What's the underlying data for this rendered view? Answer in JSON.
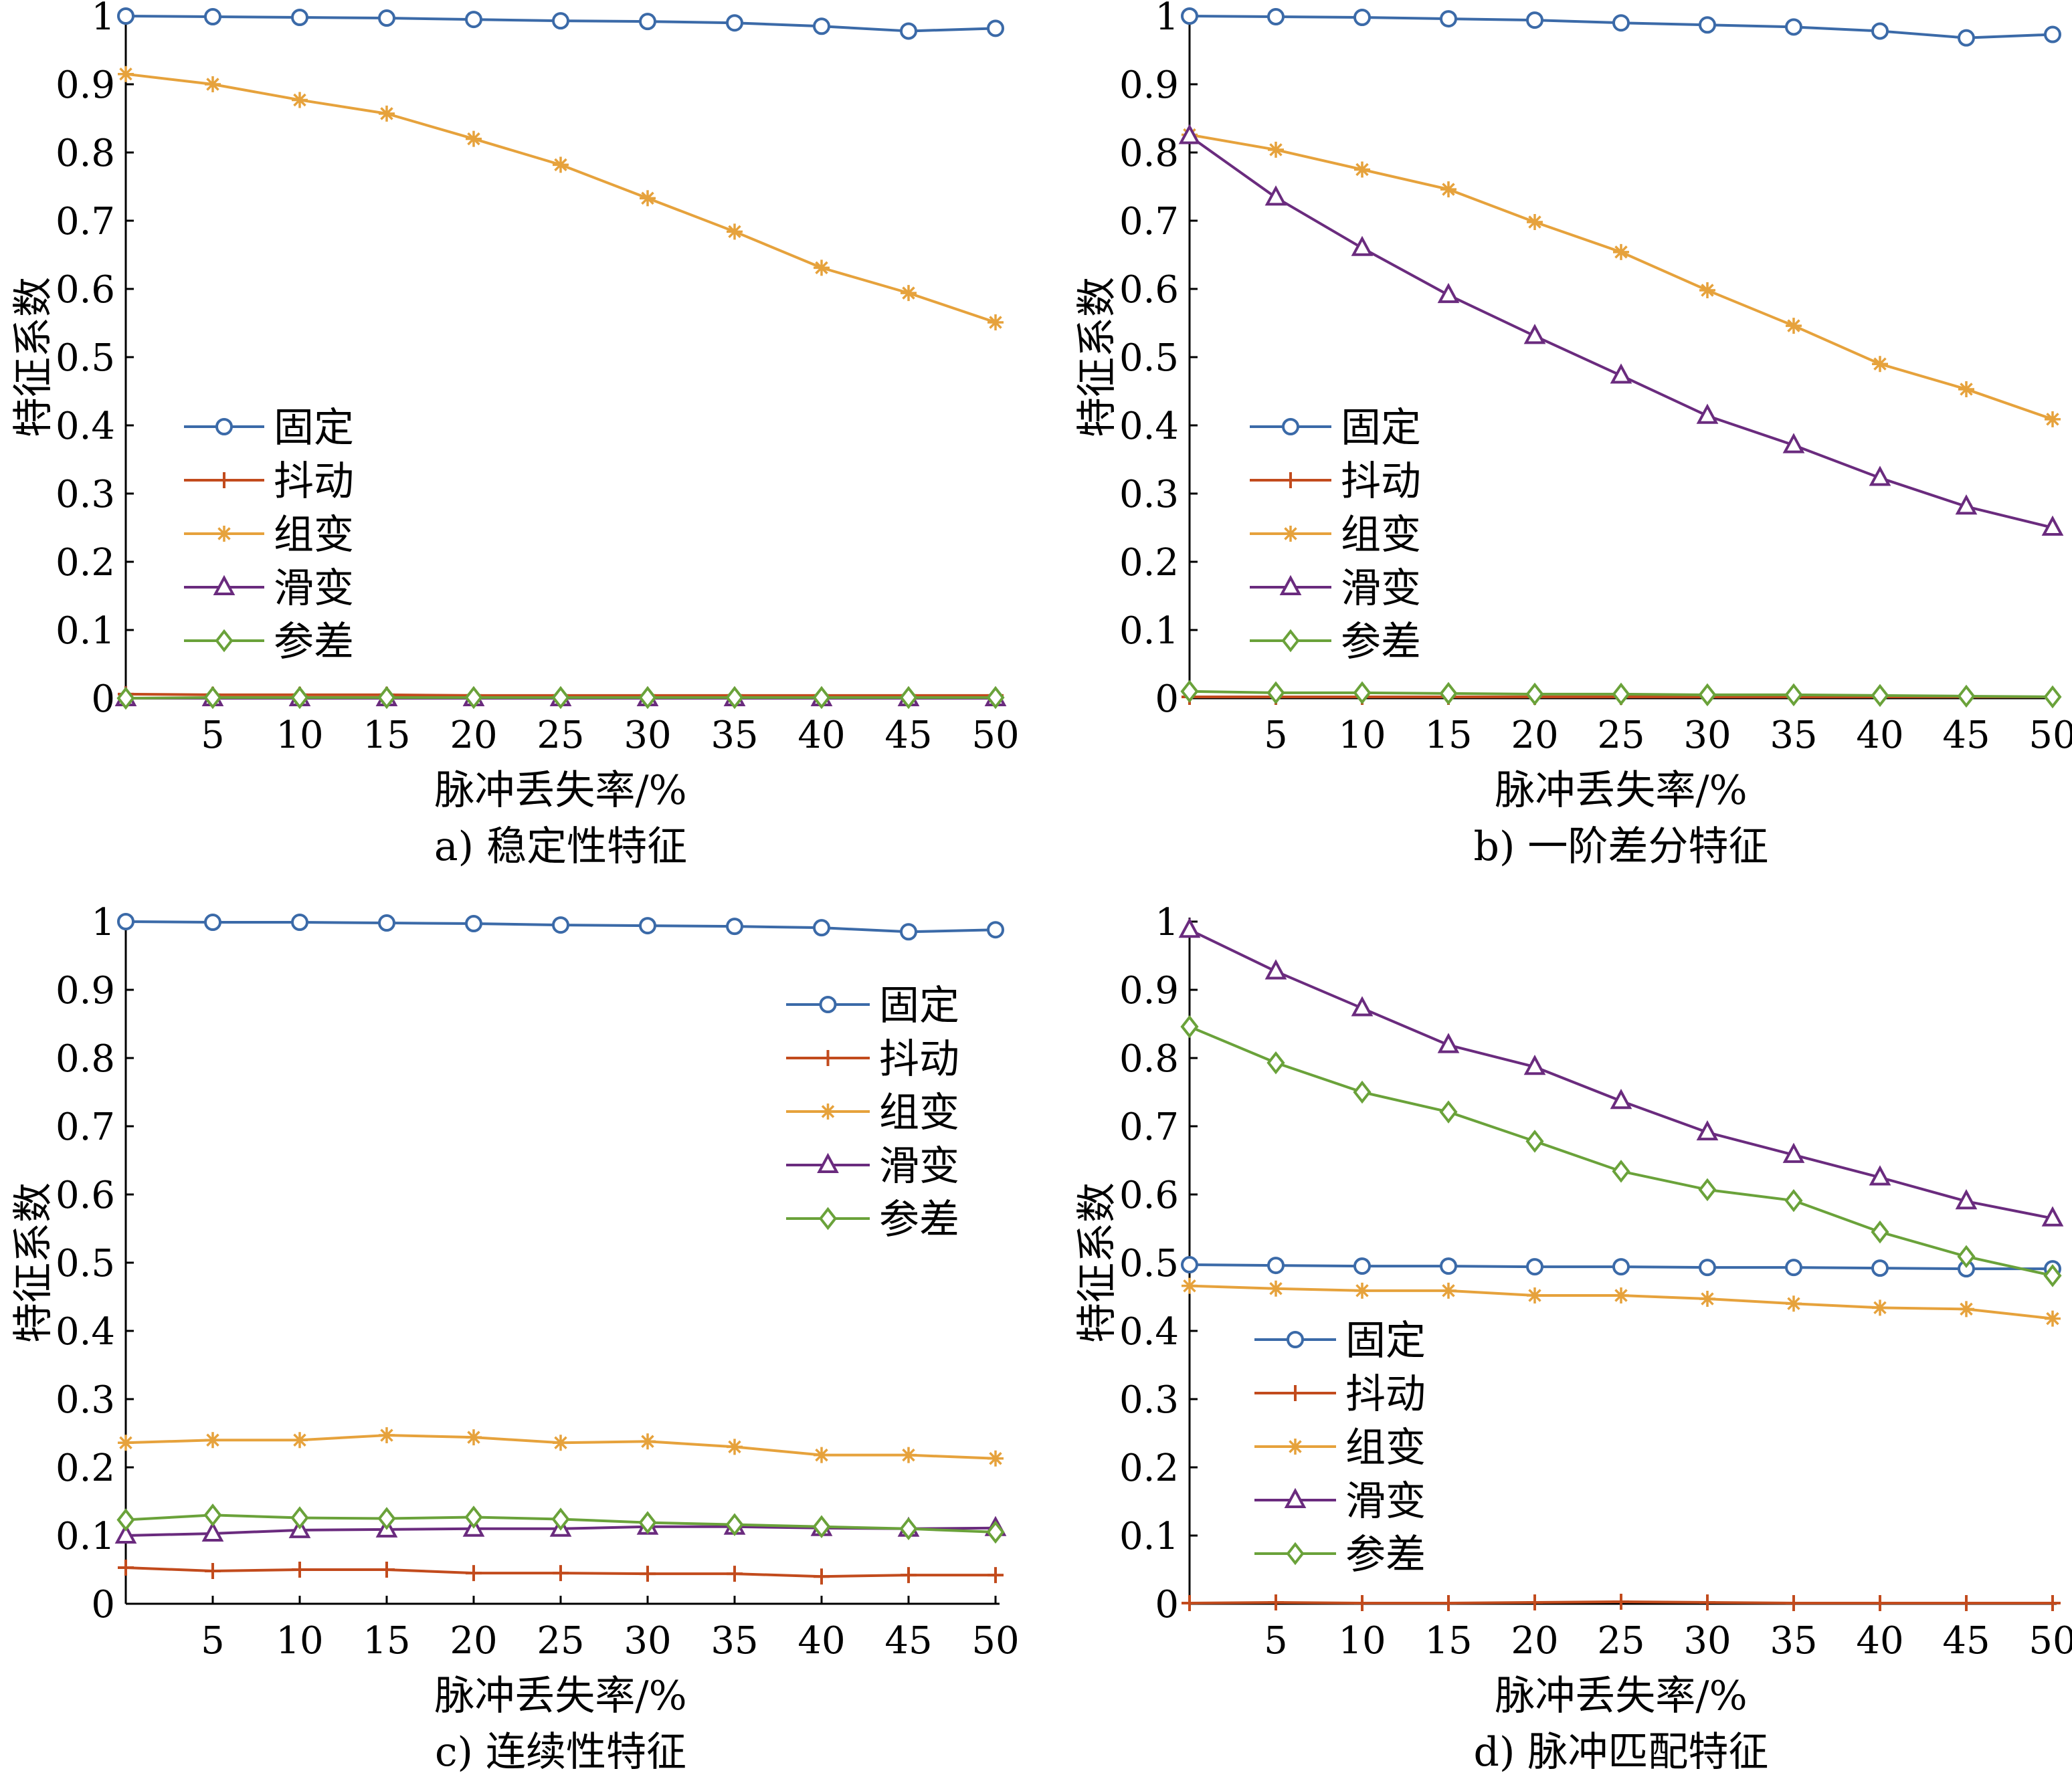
{
  "colors": {
    "固定": "#3b6aa8",
    "抖动": "#c24b1d",
    "组变": "#e6a23c",
    "滑变": "#6a2b7e",
    "参差": "#6aa23a"
  },
  "chart_data": [
    {
      "type": "line",
      "caption": "a) 稳定性特征",
      "xlabel": "脉冲丢失率/%",
      "ylabel": "特征系数",
      "xlim": [
        0,
        50
      ],
      "ylim": [
        0,
        1
      ],
      "xticks": [
        5,
        10,
        15,
        20,
        25,
        30,
        35,
        40,
        45,
        50
      ],
      "yticks": [
        0,
        0.1,
        0.2,
        0.3,
        0.4,
        0.5,
        0.6,
        0.7,
        0.8,
        0.9,
        1
      ],
      "ytick_labels": [
        "0",
        "0.1",
        "0.2",
        "0.3",
        "0.4",
        "0.5",
        "0.6",
        "0.7",
        "0.8",
        "0.9",
        "1"
      ],
      "legend_position": "center-left",
      "x": [
        0,
        5,
        10,
        15,
        20,
        25,
        30,
        35,
        40,
        45,
        50
      ],
      "series": [
        {
          "name": "固定",
          "marker": "circle",
          "values": [
            1.0,
            0.999,
            0.998,
            0.997,
            0.995,
            0.993,
            0.992,
            0.99,
            0.985,
            0.978,
            0.982
          ]
        },
        {
          "name": "抖动",
          "marker": "plus",
          "values": [
            0.006,
            0.005,
            0.005,
            0.005,
            0.004,
            0.004,
            0.004,
            0.004,
            0.004,
            0.004,
            0.004
          ]
        },
        {
          "name": "组变",
          "marker": "asterisk",
          "values": [
            0.915,
            0.9,
            0.877,
            0.857,
            0.82,
            0.782,
            0.733,
            0.684,
            0.631,
            0.594,
            0.551
          ]
        },
        {
          "name": "滑变",
          "marker": "triangle",
          "values": [
            0.0,
            0.0,
            0.0,
            0.0,
            0.0,
            0.0,
            0.0,
            0.0,
            0.0,
            0.0,
            0.0
          ]
        },
        {
          "name": "参差",
          "marker": "diamond",
          "values": [
            0.0,
            0.001,
            0.001,
            0.001,
            0.001,
            0.001,
            0.001,
            0.001,
            0.001,
            0.001,
            0.001
          ]
        }
      ]
    },
    {
      "type": "line",
      "caption": "b) 一阶差分特征",
      "xlabel": "脉冲丢失率/%",
      "ylabel": "特征系数",
      "xlim": [
        0,
        50
      ],
      "ylim": [
        0,
        1
      ],
      "xticks": [
        5,
        10,
        15,
        20,
        25,
        30,
        35,
        40,
        45,
        50
      ],
      "yticks": [
        0,
        0.1,
        0.2,
        0.3,
        0.4,
        0.5,
        0.6,
        0.7,
        0.8,
        0.9,
        1
      ],
      "ytick_labels": [
        "0",
        "0.1",
        "0.2",
        "0.3",
        "0.4",
        "0.5",
        "0.6",
        "0.7",
        "0.8",
        "0.9",
        "1"
      ],
      "legend_position": "center-left",
      "x": [
        0,
        5,
        10,
        15,
        20,
        25,
        30,
        35,
        40,
        45,
        50
      ],
      "series": [
        {
          "name": "固定",
          "marker": "circle",
          "values": [
            1.0,
            0.999,
            0.998,
            0.996,
            0.994,
            0.99,
            0.987,
            0.984,
            0.978,
            0.968,
            0.973
          ]
        },
        {
          "name": "抖动",
          "marker": "plus",
          "values": [
            0.002,
            0.002,
            0.002,
            0.002,
            0.002,
            0.002,
            0.002,
            0.002,
            0.002,
            0.002,
            0.002
          ]
        },
        {
          "name": "组变",
          "marker": "asterisk",
          "values": [
            0.826,
            0.804,
            0.775,
            0.746,
            0.698,
            0.654,
            0.598,
            0.546,
            0.49,
            0.453,
            0.409
          ]
        },
        {
          "name": "滑变",
          "marker": "triangle",
          "values": [
            0.824,
            0.734,
            0.66,
            0.591,
            0.531,
            0.473,
            0.414,
            0.371,
            0.323,
            0.281,
            0.25
          ]
        },
        {
          "name": "参差",
          "marker": "diamond",
          "values": [
            0.01,
            0.008,
            0.008,
            0.007,
            0.006,
            0.006,
            0.005,
            0.005,
            0.004,
            0.003,
            0.002
          ]
        }
      ]
    },
    {
      "type": "line",
      "caption": "c) 连续性特征",
      "xlabel": "脉冲丢失率/%",
      "ylabel": "特征系数",
      "xlim": [
        0,
        50
      ],
      "ylim": [
        0,
        1
      ],
      "xticks": [
        5,
        10,
        15,
        20,
        25,
        30,
        35,
        40,
        45,
        50
      ],
      "yticks": [
        0,
        0.1,
        0.2,
        0.3,
        0.4,
        0.5,
        0.6,
        0.7,
        0.8,
        0.9,
        1
      ],
      "ytick_labels": [
        "0",
        "0.1",
        "0.2",
        "0.3",
        "0.4",
        "0.5",
        "0.6",
        "0.7",
        "0.8",
        "0.9",
        "1"
      ],
      "legend_position": "upper-right",
      "x": [
        0,
        5,
        10,
        15,
        20,
        25,
        30,
        35,
        40,
        45,
        50
      ],
      "series": [
        {
          "name": "固定",
          "marker": "circle",
          "values": [
            1.0,
            0.999,
            0.999,
            0.998,
            0.997,
            0.995,
            0.994,
            0.993,
            0.991,
            0.985,
            0.988
          ]
        },
        {
          "name": "抖动",
          "marker": "plus",
          "values": [
            0.053,
            0.048,
            0.05,
            0.05,
            0.045,
            0.045,
            0.044,
            0.044,
            0.04,
            0.042,
            0.042
          ]
        },
        {
          "name": "组变",
          "marker": "asterisk",
          "values": [
            0.236,
            0.24,
            0.24,
            0.247,
            0.244,
            0.236,
            0.238,
            0.23,
            0.218,
            0.218,
            0.213
          ]
        },
        {
          "name": "滑变",
          "marker": "triangle",
          "values": [
            0.1,
            0.103,
            0.108,
            0.109,
            0.11,
            0.11,
            0.113,
            0.113,
            0.111,
            0.11,
            0.111
          ]
        },
        {
          "name": "参差",
          "marker": "diamond",
          "values": [
            0.123,
            0.13,
            0.126,
            0.125,
            0.127,
            0.124,
            0.119,
            0.116,
            0.113,
            0.11,
            0.105
          ]
        }
      ]
    },
    {
      "type": "line",
      "caption": "d) 脉冲匹配特征",
      "xlabel": "脉冲丢失率/%",
      "ylabel": "特征系数",
      "xlim": [
        0,
        50
      ],
      "ylim": [
        0,
        1
      ],
      "xticks": [
        5,
        10,
        15,
        20,
        25,
        30,
        35,
        40,
        45,
        50
      ],
      "yticks": [
        0,
        0.1,
        0.2,
        0.3,
        0.4,
        0.5,
        0.6,
        0.7,
        0.8,
        0.9,
        1
      ],
      "ytick_labels": [
        "0",
        "0.1",
        "0.2",
        "0.3",
        "0.4",
        "0.5",
        "0.6",
        "0.7",
        "0.8",
        "0.9",
        "1"
      ],
      "legend_position": "lower-left",
      "x": [
        0,
        5,
        10,
        15,
        20,
        25,
        30,
        35,
        40,
        45,
        50
      ],
      "series": [
        {
          "name": "固定",
          "marker": "circle",
          "values": [
            0.497,
            0.496,
            0.495,
            0.495,
            0.494,
            0.494,
            0.493,
            0.493,
            0.492,
            0.491,
            0.491
          ]
        },
        {
          "name": "抖动",
          "marker": "plus",
          "values": [
            0.001,
            0.002,
            0.001,
            0.001,
            0.002,
            0.003,
            0.002,
            0.001,
            0.001,
            0.001,
            0.001
          ]
        },
        {
          "name": "组变",
          "marker": "asterisk",
          "values": [
            0.466,
            0.462,
            0.459,
            0.459,
            0.452,
            0.452,
            0.447,
            0.44,
            0.434,
            0.432,
            0.418
          ]
        },
        {
          "name": "滑变",
          "marker": "triangle",
          "values": [
            0.988,
            0.927,
            0.873,
            0.819,
            0.787,
            0.737,
            0.691,
            0.658,
            0.625,
            0.59,
            0.565
          ]
        },
        {
          "name": "参差",
          "marker": "diamond",
          "values": [
            0.846,
            0.793,
            0.75,
            0.721,
            0.678,
            0.634,
            0.607,
            0.591,
            0.545,
            0.509,
            0.481
          ]
        }
      ]
    }
  ]
}
